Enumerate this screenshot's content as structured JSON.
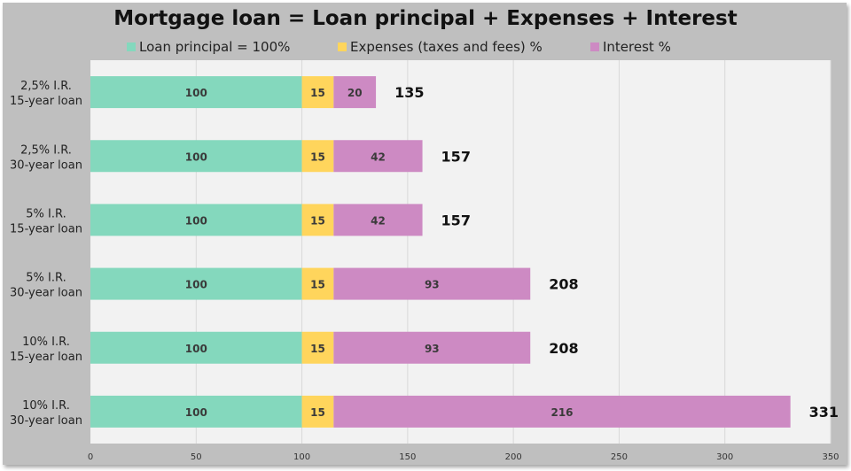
{
  "chart_data": {
    "type": "bar",
    "orientation": "horizontal",
    "stacked": true,
    "title": "Mortgage loan = Loan principal + Expenses + Interest",
    "categories": [
      "2,5%  I.R.|15-year loan",
      "2,5%  I.R.|30-year loan",
      "5%  I.R.|15-year loan",
      "5%  I.R.|30-year loan",
      "10%  I.R.|15-year loan",
      "10%  I.R.|30-year loan"
    ],
    "series": [
      {
        "name": "Loan principal = 100%",
        "color": "#84d8bd",
        "values": [
          100,
          100,
          100,
          100,
          100,
          100
        ]
      },
      {
        "name": "Expenses (taxes and fees) %",
        "color": "#ffd55c",
        "values": [
          15,
          15,
          15,
          15,
          15,
          15
        ]
      },
      {
        "name": "Interest %",
        "color": "#cd8ac3",
        "values": [
          20,
          42,
          42,
          93,
          93,
          216
        ]
      }
    ],
    "totals": [
      135,
      157,
      157,
      208,
      208,
      331
    ],
    "xlim": [
      0,
      350
    ],
    "xticks": [
      0,
      50,
      100,
      150,
      200,
      250,
      300,
      350
    ],
    "grid": true,
    "legend_position": "top"
  }
}
